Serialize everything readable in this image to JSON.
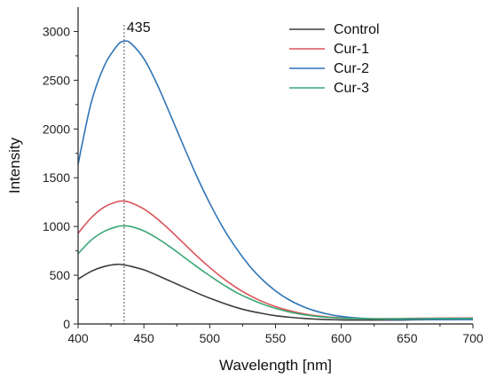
{
  "chart_data": {
    "type": "line",
    "xlabel": "Wavelength [nm]",
    "ylabel": "Intensity",
    "xlim": [
      400,
      700
    ],
    "ylim": [
      0,
      3250
    ],
    "xticks": [
      400,
      450,
      500,
      550,
      600,
      650,
      700
    ],
    "yticks": [
      0,
      500,
      1000,
      1500,
      2000,
      2500,
      3000
    ],
    "grid": false,
    "legend_position": "top-right",
    "annotation": {
      "text": "435",
      "x": 435,
      "style": "dotted vertical line"
    },
    "x": [
      400,
      410,
      420,
      430,
      435,
      440,
      450,
      460,
      470,
      480,
      490,
      500,
      510,
      520,
      530,
      540,
      550,
      560,
      570,
      580,
      590,
      600,
      610,
      620,
      630,
      640,
      650,
      660,
      670,
      680,
      690,
      700
    ],
    "series": [
      {
        "name": "Control",
        "color": "#3d3d3d",
        "values": [
          460,
          540,
          590,
          612,
          605,
          592,
          555,
          500,
          440,
          380,
          320,
          265,
          215,
          170,
          135,
          108,
          85,
          70,
          58,
          50,
          45,
          42,
          40,
          40,
          40,
          40,
          42,
          44,
          45,
          47,
          48,
          50
        ]
      },
      {
        "name": "Cur-1",
        "color": "#d9545a",
        "values": [
          930,
          1090,
          1200,
          1255,
          1260,
          1245,
          1180,
          1080,
          960,
          830,
          700,
          580,
          470,
          375,
          295,
          230,
          178,
          138,
          108,
          86,
          72,
          63,
          58,
          55,
          54,
          55,
          56,
          58,
          59,
          60,
          61,
          62
        ]
      },
      {
        "name": "Cur-2",
        "color": "#2e74b5",
        "values": [
          1640,
          2270,
          2650,
          2860,
          2900,
          2880,
          2720,
          2460,
          2150,
          1830,
          1520,
          1240,
          990,
          780,
          600,
          455,
          340,
          250,
          183,
          135,
          100,
          78,
          63,
          55,
          50,
          47,
          46,
          46,
          45,
          45,
          45,
          45
        ]
      },
      {
        "name": "Cur-3",
        "color": "#3aa876",
        "values": [
          720,
          860,
          950,
          1000,
          1005,
          1000,
          955,
          880,
          790,
          690,
          590,
          495,
          405,
          325,
          260,
          205,
          160,
          125,
          98,
          80,
          67,
          60,
          56,
          54,
          53,
          53,
          54,
          55,
          56,
          56,
          57,
          57
        ]
      }
    ]
  }
}
